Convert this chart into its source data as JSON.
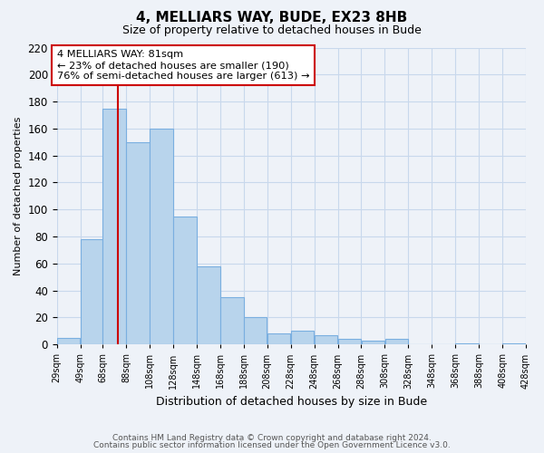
{
  "title": "4, MELLIARS WAY, BUDE, EX23 8HB",
  "subtitle": "Size of property relative to detached houses in Bude",
  "xlabel": "Distribution of detached houses by size in Bude",
  "ylabel": "Number of detached properties",
  "bar_color": "#b8d4ec",
  "bar_edge_color": "#7aafe0",
  "vline_x": 81,
  "vline_color": "#cc0000",
  "annotation_lines": [
    "4 MELLIARS WAY: 81sqm",
    "← 23% of detached houses are smaller (190)",
    "76% of semi-detached houses are larger (613) →"
  ],
  "annotation_box_color": "#ffffff",
  "annotation_box_edge_color": "#cc0000",
  "bin_edges": [
    29,
    49,
    68,
    88,
    108,
    128,
    148,
    168,
    188,
    208,
    228,
    248,
    268,
    288,
    308,
    328,
    348,
    368,
    388,
    408,
    428
  ],
  "bar_heights": [
    5,
    78,
    175,
    150,
    160,
    95,
    58,
    35,
    20,
    8,
    10,
    7,
    4,
    3,
    4,
    0,
    0,
    1,
    0,
    1
  ],
  "ylim": [
    0,
    220
  ],
  "yticks": [
    0,
    20,
    40,
    60,
    80,
    100,
    120,
    140,
    160,
    180,
    200,
    220
  ],
  "grid_color": "#c8d8ec",
  "background_color": "#eef2f8",
  "plot_bg_color": "#eef2f8",
  "footer_line1": "Contains HM Land Registry data © Crown copyright and database right 2024.",
  "footer_line2": "Contains public sector information licensed under the Open Government Licence v3.0."
}
